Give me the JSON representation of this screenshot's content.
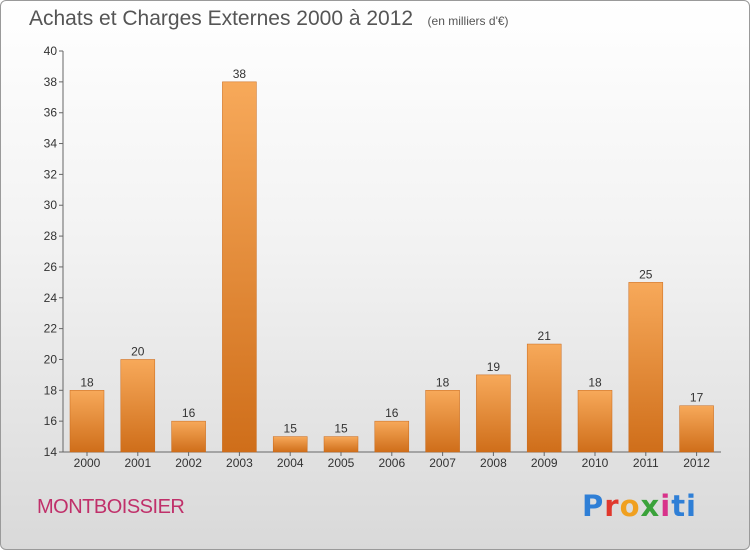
{
  "header": {
    "title": "Achats et Charges Externes 2000 à 2012",
    "subtitle": "(en milliers d'€)"
  },
  "footer": {
    "commune": "MONTBOISSIER",
    "brand": [
      "P",
      "r",
      "o",
      "x",
      "i",
      "ti"
    ]
  },
  "colors": {
    "bar_light": "#f7a95a",
    "bar_dark": "#cf6e1a",
    "axis": "#666666",
    "commune_text": "#c0306a"
  },
  "chart_data": {
    "type": "bar",
    "title": "Achats et Charges Externes 2000 à 2012",
    "subtitle": "(en milliers d'€)",
    "categories": [
      "2000",
      "2001",
      "2002",
      "2003",
      "2004",
      "2005",
      "2006",
      "2007",
      "2008",
      "2009",
      "2010",
      "2011",
      "2012"
    ],
    "values": [
      18,
      20,
      16,
      38,
      15,
      15,
      16,
      18,
      19,
      21,
      18,
      25,
      17
    ],
    "yticks": [
      14,
      16,
      18,
      20,
      22,
      24,
      26,
      28,
      30,
      32,
      34,
      36,
      38,
      40
    ],
    "ylim": [
      14,
      40
    ],
    "xlabel": "",
    "ylabel": "",
    "grid": false,
    "legend": "none"
  }
}
